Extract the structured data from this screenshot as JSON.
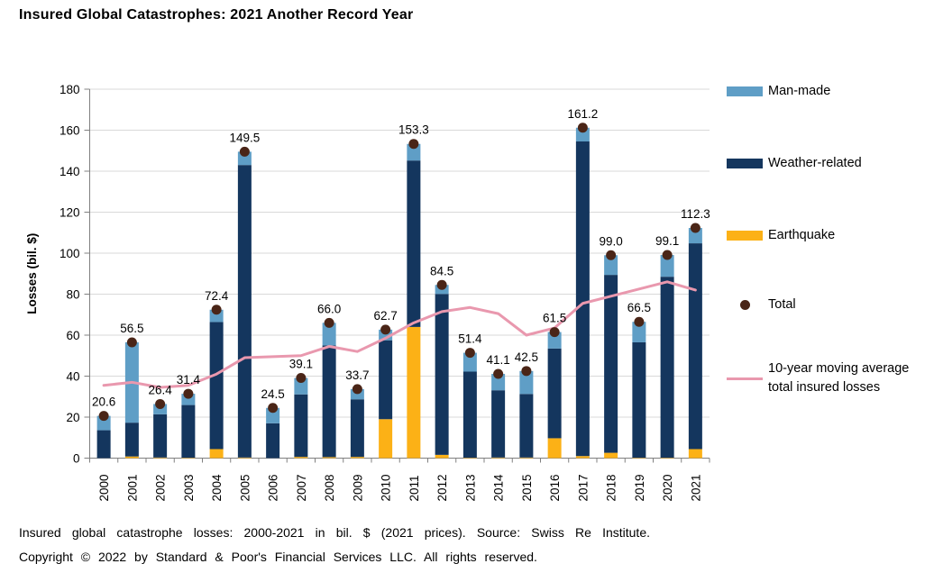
{
  "title": "Insured Global Catastrophes: 2021 Another Record Year",
  "chart_data": {
    "type": "bar",
    "subtype": "stacked-bars-with-total-dots-and-moving-average-line",
    "title": "Insured Global Catastrophes: 2021 Another Record Year",
    "xlabel": "",
    "ylabel": "Losses (bil. $)",
    "ylim": [
      0,
      180
    ],
    "yticks": [
      0,
      20,
      40,
      60,
      80,
      100,
      120,
      140,
      160,
      180
    ],
    "grid": true,
    "legend_position": "right",
    "categories": [
      "2000",
      "2001",
      "2002",
      "2003",
      "2004",
      "2005",
      "2006",
      "2007",
      "2008",
      "2009",
      "2010",
      "2011",
      "2012",
      "2013",
      "2014",
      "2015",
      "2016",
      "2017",
      "2018",
      "2019",
      "2020",
      "2021"
    ],
    "series": [
      {
        "name": "Earthquake",
        "stack_order": 1,
        "color": "#FCB116",
        "values": [
          0,
          0.8,
          0.3,
          0.2,
          4.4,
          0.3,
          0,
          0.6,
          0.5,
          0.6,
          19.0,
          64.0,
          1.6,
          0.2,
          0.3,
          0.3,
          9.7,
          1.0,
          2.6,
          0.2,
          0.2,
          4.4
        ]
      },
      {
        "name": "Weather-related",
        "stack_order": 2,
        "color": "#14365E",
        "values": [
          13.6,
          16.5,
          21.1,
          25.7,
          62.0,
          142.7,
          17.0,
          30.5,
          54.5,
          28.1,
          38.5,
          81.2,
          78.5,
          42.0,
          32.8,
          31.0,
          43.8,
          153.5,
          86.8,
          56.3,
          88.3,
          100.4
        ]
      },
      {
        "name": "Man-made",
        "stack_order": 3,
        "color": "#5F9EC6",
        "values": [
          7.0,
          39.2,
          5.0,
          5.5,
          6.0,
          6.5,
          7.5,
          8.0,
          11.0,
          5.0,
          5.2,
          8.1,
          4.4,
          9.2,
          8.0,
          11.2,
          8.0,
          6.7,
          9.6,
          10.0,
          10.6,
          7.5
        ]
      }
    ],
    "totals": {
      "name": "Total",
      "color": "#4A2517",
      "show_labels": true,
      "values": [
        20.6,
        56.5,
        26.4,
        31.4,
        72.4,
        149.5,
        24.5,
        39.1,
        66.0,
        33.7,
        62.7,
        153.3,
        84.5,
        51.4,
        41.1,
        42.5,
        61.5,
        161.2,
        99.0,
        66.5,
        99.1,
        112.3
      ]
    },
    "moving_average": {
      "name": "10-year moving average total insured losses",
      "color": "#E998AE",
      "values": [
        35.5,
        37,
        34.5,
        35.5,
        41,
        49,
        49.5,
        50,
        54.5,
        52,
        58.5,
        66,
        71.5,
        73.5,
        70.5,
        60,
        63.5,
        75.5,
        79,
        82.5,
        86,
        82
      ]
    },
    "colors": {
      "gridline": "#D9D9D9",
      "axis": "#808080",
      "label_text": "#000000"
    }
  },
  "legend": {
    "items": [
      {
        "label": "Man-made",
        "type": "swatch",
        "color": "#5F9EC6"
      },
      {
        "label": "Weather-related",
        "type": "swatch",
        "color": "#14365E"
      },
      {
        "label": "Earthquake",
        "type": "swatch",
        "color": "#FCB116"
      },
      {
        "label": "Total",
        "type": "dot",
        "color": "#4A2517"
      },
      {
        "label": "10-year moving average total insured losses",
        "type": "line",
        "color": "#E998AE"
      }
    ]
  },
  "footnote": {
    "line1": "Insured global catastrophe losses: 2000-2021 in bil. $ (2021 prices). Source: Swiss Re Institute.",
    "line2": "Copyright © 2022 by Standard & Poor's Financial Services LLC. All rights reserved."
  }
}
